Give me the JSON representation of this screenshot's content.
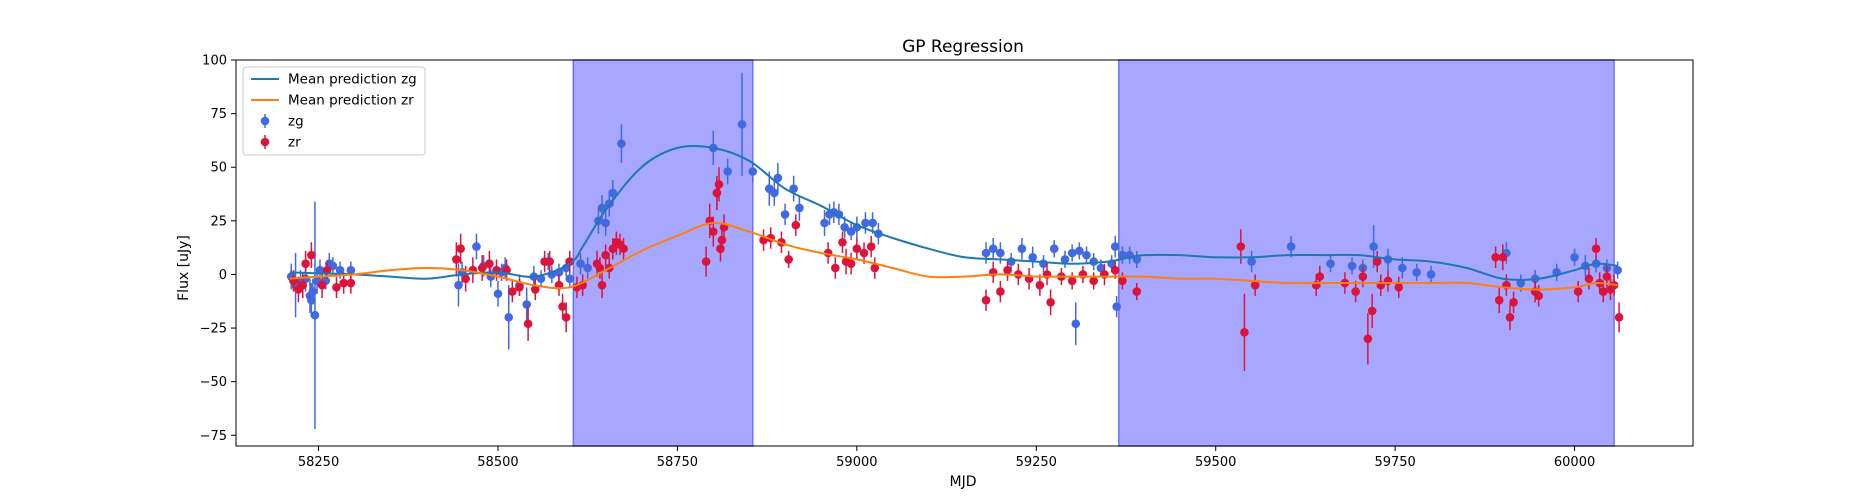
{
  "chart_data": {
    "type": "scatter",
    "title": "GP Regression",
    "xlabel": "MJD",
    "ylabel": "Flux [uJy]",
    "xlim": [
      58135,
      60165
    ],
    "ylim": [
      -80,
      100
    ],
    "xticks": [
      58250,
      58500,
      58750,
      59000,
      59250,
      59500,
      59750,
      60000
    ],
    "yticks": [
      -75,
      -50,
      -25,
      0,
      25,
      50,
      75,
      100
    ],
    "legend": {
      "placement": "top-left"
    },
    "colors": {
      "zg_mean": "#1f77b4",
      "zr_mean": "#ff7f0e",
      "zg_points": "#4169e1",
      "zr_points": "#dc143c",
      "shade": "#8a8aff"
    },
    "shaded_regions": [
      [
        58605,
        58855
      ],
      [
        59365,
        60055
      ]
    ],
    "series": [
      {
        "name": "Mean prediction zg",
        "kind": "line",
        "x": [
          58210,
          58250,
          58300,
          58350,
          58400,
          58450,
          58500,
          58550,
          58600,
          58620,
          58650,
          58700,
          58750,
          58800,
          58850,
          58900,
          58950,
          59000,
          59050,
          59100,
          59150,
          59200,
          59250,
          59300,
          59350,
          59380,
          59400,
          59450,
          59500,
          59550,
          59600,
          59650,
          59700,
          59750,
          59800,
          59850,
          59900,
          59950,
          60000,
          60030,
          60060
        ],
        "y": [
          1,
          0.5,
          0,
          -1,
          -2,
          0,
          1,
          -1,
          5,
          14,
          30,
          50,
          59,
          59,
          53,
          40,
          32,
          23,
          17,
          12,
          8,
          7,
          6,
          5,
          6,
          8,
          9,
          9,
          8,
          8,
          9,
          9,
          9,
          7,
          6,
          3,
          -2,
          -2,
          2,
          5,
          4
        ]
      },
      {
        "name": "Mean prediction zr",
        "kind": "line",
        "x": [
          58210,
          58250,
          58300,
          58350,
          58400,
          58450,
          58500,
          58550,
          58600,
          58650,
          58700,
          58750,
          58800,
          58850,
          58900,
          58950,
          59000,
          59050,
          59100,
          59150,
          59200,
          59250,
          59300,
          59350,
          59400,
          59450,
          59500,
          59550,
          59600,
          59650,
          59700,
          59750,
          59800,
          59850,
          59900,
          59950,
          60000,
          60030,
          60060
        ],
        "y": [
          -2,
          -1,
          0,
          2,
          3,
          2,
          -1,
          -5,
          -6,
          2,
          11,
          18,
          24,
          20,
          14,
          10,
          7,
          3,
          -1,
          -1,
          0,
          -1,
          -1,
          -1,
          -1,
          -2,
          -2,
          -3,
          -4,
          -4,
          -4,
          -4,
          -4,
          -4,
          -6,
          -7,
          -6,
          -4,
          -5
        ]
      },
      {
        "name": "zg",
        "kind": "errorbar",
        "points": [
          [
            58212,
            -1,
            6
          ],
          [
            58218,
            -5,
            15
          ],
          [
            58225,
            -3,
            5
          ],
          [
            58232,
            -2,
            6
          ],
          [
            58238,
            -10,
            8
          ],
          [
            58240,
            -12,
            8
          ],
          [
            58242,
            -8,
            6
          ],
          [
            58245,
            -19,
            53
          ],
          [
            58248,
            -3,
            6
          ],
          [
            58252,
            2,
            5
          ],
          [
            58260,
            -3,
            4
          ],
          [
            58265,
            5,
            5
          ],
          [
            58270,
            4,
            4
          ],
          [
            58280,
            2,
            4
          ],
          [
            58295,
            2,
            4
          ],
          [
            58445,
            -5,
            10
          ],
          [
            58450,
            1,
            5
          ],
          [
            58470,
            13,
            6
          ],
          [
            58480,
            4,
            5
          ],
          [
            58490,
            -1,
            5
          ],
          [
            58500,
            -9,
            6
          ],
          [
            58505,
            1,
            4
          ],
          [
            58510,
            3,
            5
          ],
          [
            58515,
            -20,
            15
          ],
          [
            58530,
            -5,
            5
          ],
          [
            58540,
            -14,
            8
          ],
          [
            58550,
            -1,
            5
          ],
          [
            58560,
            -2,
            4
          ],
          [
            58570,
            6,
            4
          ],
          [
            58575,
            0,
            4
          ],
          [
            58585,
            1,
            4
          ],
          [
            58595,
            3,
            4
          ],
          [
            58600,
            -2,
            4
          ],
          [
            58615,
            5,
            5
          ],
          [
            58625,
            3,
            5
          ],
          [
            58640,
            25,
            6
          ],
          [
            58645,
            31,
            6
          ],
          [
            58650,
            24,
            6
          ],
          [
            58655,
            33,
            6
          ],
          [
            58660,
            38,
            6
          ],
          [
            58665,
            14,
            5
          ],
          [
            58672,
            61,
            9
          ],
          [
            58800,
            59,
            8
          ],
          [
            58805,
            38,
            6
          ],
          [
            58820,
            48,
            6
          ],
          [
            58840,
            70,
            24
          ],
          [
            58855,
            48,
            5
          ],
          [
            58878,
            40,
            8
          ],
          [
            58885,
            38,
            6
          ],
          [
            58890,
            45,
            7
          ],
          [
            58900,
            28,
            5
          ],
          [
            58912,
            40,
            6
          ],
          [
            58920,
            31,
            6
          ],
          [
            58955,
            24,
            6
          ],
          [
            58962,
            28,
            5
          ],
          [
            58968,
            29,
            5
          ],
          [
            58975,
            28,
            5
          ],
          [
            58983,
            22,
            5
          ],
          [
            58992,
            20,
            4
          ],
          [
            59000,
            22,
            5
          ],
          [
            59012,
            24,
            5
          ],
          [
            59022,
            24,
            5
          ],
          [
            59030,
            19,
            5
          ],
          [
            59180,
            10,
            5
          ],
          [
            59190,
            12,
            5
          ],
          [
            59200,
            10,
            5
          ],
          [
            59215,
            6,
            4
          ],
          [
            59230,
            12,
            5
          ],
          [
            59245,
            8,
            5
          ],
          [
            59260,
            5,
            4
          ],
          [
            59275,
            12,
            4
          ],
          [
            59290,
            7,
            4
          ],
          [
            59300,
            10,
            4
          ],
          [
            59310,
            11,
            4
          ],
          [
            59320,
            9,
            4
          ],
          [
            59330,
            6,
            4
          ],
          [
            59340,
            3,
            4
          ],
          [
            59355,
            5,
            4
          ],
          [
            59360,
            13,
            5
          ],
          [
            59370,
            9,
            4
          ],
          [
            59380,
            9,
            4
          ],
          [
            59390,
            7,
            4
          ],
          [
            59305,
            -23,
            10
          ],
          [
            59362,
            -15,
            5
          ],
          [
            59550,
            6,
            5
          ],
          [
            59605,
            13,
            5
          ],
          [
            59660,
            5,
            4
          ],
          [
            59690,
            4,
            4
          ],
          [
            59705,
            3,
            4
          ],
          [
            59720,
            13,
            10
          ],
          [
            59740,
            7,
            5
          ],
          [
            59760,
            3,
            5
          ],
          [
            59780,
            1,
            4
          ],
          [
            59800,
            0,
            4
          ],
          [
            59905,
            10,
            5
          ],
          [
            59925,
            -4,
            4
          ],
          [
            59945,
            -2,
            4
          ],
          [
            59975,
            1,
            4
          ],
          [
            60000,
            8,
            4
          ],
          [
            60015,
            4,
            5
          ],
          [
            60030,
            5,
            4
          ],
          [
            60045,
            3,
            4
          ],
          [
            60060,
            2,
            4
          ]
        ]
      },
      {
        "name": "zr",
        "kind": "errorbar",
        "points": [
          [
            58215,
            -3,
            5
          ],
          [
            58222,
            -7,
            6
          ],
          [
            58228,
            -5,
            6
          ],
          [
            58232,
            5,
            6
          ],
          [
            58240,
            9,
            6
          ],
          [
            58255,
            -5,
            6
          ],
          [
            58262,
            2,
            4
          ],
          [
            58275,
            -6,
            5
          ],
          [
            58285,
            -4,
            5
          ],
          [
            58295,
            -4,
            5
          ],
          [
            58442,
            7,
            8
          ],
          [
            58448,
            12,
            7
          ],
          [
            58455,
            -2,
            6
          ],
          [
            58465,
            2,
            6
          ],
          [
            58478,
            3,
            6
          ],
          [
            58488,
            5,
            6
          ],
          [
            58498,
            2,
            5
          ],
          [
            58512,
            2,
            5
          ],
          [
            58520,
            -8,
            5
          ],
          [
            58530,
            -6,
            4
          ],
          [
            58542,
            -23,
            8
          ],
          [
            58552,
            -7,
            5
          ],
          [
            58565,
            6,
            5
          ],
          [
            58572,
            6,
            5
          ],
          [
            58585,
            -5,
            5
          ],
          [
            58590,
            -15,
            6
          ],
          [
            58595,
            -20,
            7
          ],
          [
            58600,
            6,
            5
          ],
          [
            58610,
            -6,
            5
          ],
          [
            58618,
            -5,
            5
          ],
          [
            58638,
            5,
            6
          ],
          [
            58642,
            3,
            5
          ],
          [
            58645,
            -5,
            6
          ],
          [
            58650,
            9,
            5
          ],
          [
            58655,
            3,
            5
          ],
          [
            58660,
            12,
            5
          ],
          [
            58665,
            15,
            5
          ],
          [
            58670,
            14,
            5
          ],
          [
            58675,
            12,
            5
          ],
          [
            58790,
            6,
            7
          ],
          [
            58795,
            25,
            8
          ],
          [
            58800,
            20,
            7
          ],
          [
            58805,
            38,
            8
          ],
          [
            58808,
            42,
            8
          ],
          [
            58810,
            12,
            6
          ],
          [
            58812,
            16,
            6
          ],
          [
            58815,
            22,
            6
          ],
          [
            58870,
            16,
            5
          ],
          [
            58880,
            17,
            5
          ],
          [
            58895,
            15,
            5
          ],
          [
            58905,
            7,
            4
          ],
          [
            58915,
            23,
            5
          ],
          [
            58960,
            10,
            5
          ],
          [
            58970,
            3,
            5
          ],
          [
            58980,
            15,
            5
          ],
          [
            58985,
            6,
            6
          ],
          [
            58992,
            5,
            5
          ],
          [
            59000,
            12,
            5
          ],
          [
            59010,
            10,
            5
          ],
          [
            59020,
            13,
            5
          ],
          [
            59025,
            3,
            5
          ],
          [
            59180,
            -12,
            5
          ],
          [
            59190,
            1,
            5
          ],
          [
            59200,
            -8,
            5
          ],
          [
            59210,
            2,
            5
          ],
          [
            59225,
            0,
            5
          ],
          [
            59240,
            -2,
            5
          ],
          [
            59255,
            -5,
            5
          ],
          [
            59265,
            0,
            5
          ],
          [
            59270,
            -13,
            6
          ],
          [
            59285,
            -1,
            4
          ],
          [
            59300,
            -3,
            4
          ],
          [
            59315,
            0,
            4
          ],
          [
            59330,
            -3,
            4
          ],
          [
            59345,
            0,
            5
          ],
          [
            59360,
            2,
            4
          ],
          [
            59370,
            -3,
            4
          ],
          [
            59390,
            -8,
            4
          ],
          [
            59540,
            -27,
            18
          ],
          [
            59535,
            13,
            8
          ],
          [
            59555,
            -5,
            5
          ],
          [
            59640,
            -5,
            5
          ],
          [
            59645,
            -1,
            5
          ],
          [
            59680,
            -4,
            5
          ],
          [
            59695,
            -8,
            5
          ],
          [
            59705,
            -1,
            5
          ],
          [
            59712,
            -30,
            12
          ],
          [
            59718,
            -17,
            8
          ],
          [
            59725,
            6,
            5
          ],
          [
            59730,
            -5,
            5
          ],
          [
            59740,
            -3,
            5
          ],
          [
            59755,
            -6,
            5
          ],
          [
            59890,
            8,
            5
          ],
          [
            59895,
            -12,
            6
          ],
          [
            59900,
            8,
            6
          ],
          [
            59905,
            -5,
            5
          ],
          [
            59910,
            -20,
            6
          ],
          [
            59915,
            -13,
            5
          ],
          [
            59945,
            -8,
            5
          ],
          [
            59950,
            -10,
            5
          ],
          [
            60005,
            -8,
            5
          ],
          [
            60020,
            -2,
            5
          ],
          [
            60030,
            12,
            5
          ],
          [
            60035,
            -4,
            5
          ],
          [
            60040,
            -8,
            5
          ],
          [
            60045,
            -1,
            5
          ],
          [
            60050,
            -7,
            5
          ],
          [
            60055,
            -5,
            5
          ],
          [
            60062,
            -20,
            7
          ]
        ]
      }
    ]
  }
}
